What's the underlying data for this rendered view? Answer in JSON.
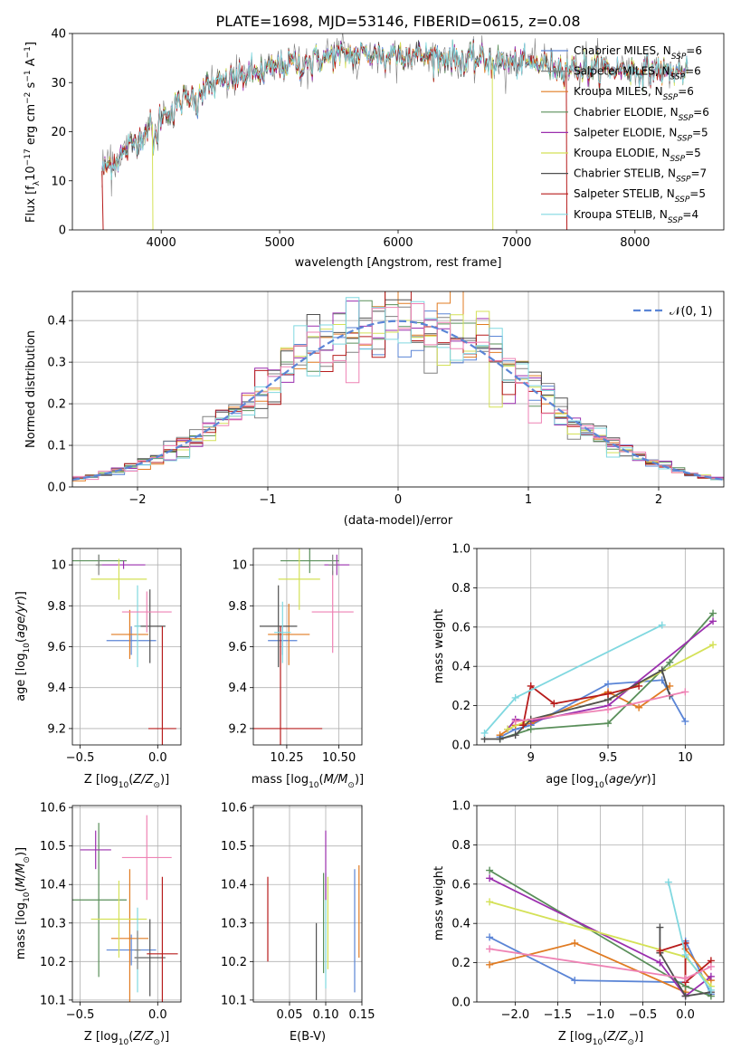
{
  "title": "PLATE=1698, MJD=53146, FIBERID=0615, z=0.08",
  "colors": {
    "Chabrier MILES": "#5b85d6",
    "Salpeter MILES": "#808080",
    "Kroupa MILES": "#e07b22",
    "Chabrier ELODIE": "#5a8f5a",
    "Salpeter ELODIE": "#9b2fae",
    "Kroupa ELODIE": "#d4e157",
    "Chabrier STELIB": "#505050",
    "Salpeter STELIB": "#b71c1c",
    "Kroupa STELIB": "#80d8e0",
    "pink": "#ee82b4",
    "normal": "#5b85d6"
  },
  "legend_top": [
    {
      "name": "Chabrier MILES, N",
      "n": "6",
      "color": "#5b85d6"
    },
    {
      "name": "Salpeter MILES, N",
      "n": "6",
      "color": "#808080"
    },
    {
      "name": "Kroupa MILES, N",
      "n": "6",
      "color": "#e07b22"
    },
    {
      "name": "Chabrier ELODIE, N",
      "n": "6",
      "color": "#5a8f5a"
    },
    {
      "name": "Salpeter ELODIE, N",
      "n": "5",
      "color": "#9b2fae"
    },
    {
      "name": "Kroupa ELODIE, N",
      "n": "5",
      "color": "#d4e157"
    },
    {
      "name": "Chabrier STELIB, N",
      "n": "7",
      "color": "#505050"
    },
    {
      "name": "Salpeter STELIB, N",
      "n": "5",
      "color": "#b71c1c"
    },
    {
      "name": "Kroupa STELIB, N",
      "n": "4",
      "color": "#80d8e0"
    }
  ],
  "legend_sub": "SSP",
  "legend_hist": "𝒩(0, 1)",
  "chart_data": [
    {
      "id": "spectrum",
      "type": "line",
      "xlabel": "wavelength [Angstrom, rest frame]",
      "ylabel": "Flux [f",
      "xlim": [
        3250,
        8750
      ],
      "ylim": [
        0,
        40
      ],
      "xticks": [
        4000,
        5000,
        6000,
        7000,
        8000
      ],
      "yticks": [
        0,
        10,
        20,
        30,
        40
      ],
      "continuum": {
        "x": [
          3500,
          3700,
          3900,
          4100,
          4300,
          4500,
          4800,
          5100,
          5500,
          6000,
          6500,
          7000,
          7500,
          8000,
          8500
        ],
        "y": [
          12,
          16,
          21,
          25,
          28,
          30,
          32,
          34,
          35.5,
          36,
          35,
          34,
          33,
          32.5,
          32
        ]
      },
      "data_range": [
        3500,
        8450
      ]
    },
    {
      "id": "residuals",
      "type": "area",
      "xlabel": "(data-model)/error",
      "ylabel": "Normed distribution",
      "xlim": [
        -2.5,
        2.5
      ],
      "ylim": [
        0,
        0.47
      ],
      "xticks": [
        -2,
        -1,
        0,
        1,
        2
      ],
      "xtick_labels": [
        "−2",
        "−1",
        "0",
        "1",
        "2"
      ],
      "yticks": [
        0.0,
        0.1,
        0.2,
        0.3,
        0.4
      ],
      "ytick_labels": [
        "0.0",
        "0.1",
        "0.2",
        "0.3",
        "0.4"
      ],
      "bin_width": 0.1,
      "normal_mean": 0,
      "normal_sigma": 1
    },
    {
      "id": "age_vs_Z",
      "type": "scatter",
      "xlabel": "Z [log",
      "ylabel": "age  [log",
      "xlim": [
        -0.55,
        0.15
      ],
      "ylim": [
        9.12,
        10.08
      ],
      "xticks": [
        -0.5,
        0.0
      ],
      "xtick_labels": [
        "−0.5",
        "0.0"
      ],
      "yticks": [
        9.2,
        9.4,
        9.6,
        9.8,
        10.0
      ],
      "points": [
        {
          "s": "Chabrier MILES",
          "x": -0.17,
          "y": 9.63,
          "xe": 0.16,
          "ye": 0.07
        },
        {
          "s": "Kroupa MILES",
          "x": -0.18,
          "y": 9.66,
          "xe": 0.12,
          "ye": 0.12
        },
        {
          "s": "Chabrier ELODIE",
          "x": -0.38,
          "y": 10.02,
          "xe": 0.18,
          "ye": 0.03
        },
        {
          "s": "Salpeter ELODIE",
          "x": -0.22,
          "y": 10.0,
          "xe": 0.14,
          "ye": 0.02
        },
        {
          "s": "Kroupa ELODIE",
          "x": -0.25,
          "y": 9.93,
          "xe": 0.18,
          "ye": 0.1
        },
        {
          "s": "Chabrier STELIB",
          "x": -0.05,
          "y": 9.7,
          "xe": 0.1,
          "ye": 0.18
        },
        {
          "s": "Salpeter STELIB",
          "x": 0.03,
          "y": 9.2,
          "xe": 0.09,
          "ye": 0.5
        },
        {
          "s": "Kroupa STELIB",
          "x": -0.13,
          "y": 9.7,
          "xe": 0.02,
          "ye": 0.2
        },
        {
          "s": "pink",
          "x": -0.07,
          "y": 9.77,
          "xe": 0.16,
          "ye": 0.1
        },
        {
          "s": "Salpeter MILES",
          "x": -0.38,
          "y": 10.0,
          "xe": 0.02,
          "ye": 0.05
        }
      ]
    },
    {
      "id": "age_vs_mass",
      "type": "scatter",
      "xlabel": "mass [log",
      "ylabel": "",
      "xlim": [
        10.09,
        10.61
      ],
      "ylim": [
        9.12,
        10.08
      ],
      "xticks": [
        10.25,
        10.5
      ],
      "xtick_labels": [
        "10.25",
        "10.50"
      ],
      "yticks": [
        9.2,
        9.4,
        9.6,
        9.8,
        10.0
      ],
      "points": [
        {
          "s": "Chabrier MILES",
          "x": 10.23,
          "y": 9.63,
          "xe": 0.07,
          "ye": 0.07
        },
        {
          "s": "Kroupa MILES",
          "x": 10.26,
          "y": 9.66,
          "xe": 0.1,
          "ye": 0.15
        },
        {
          "s": "Chabrier ELODIE",
          "x": 10.36,
          "y": 10.02,
          "xe": 0.14,
          "ye": 0.06
        },
        {
          "s": "Salpeter ELODIE",
          "x": 10.49,
          "y": 10.0,
          "xe": 0.06,
          "ye": 0.05
        },
        {
          "s": "Kroupa ELODIE",
          "x": 10.31,
          "y": 9.93,
          "xe": 0.1,
          "ye": 0.15
        },
        {
          "s": "Chabrier STELIB",
          "x": 10.21,
          "y": 9.7,
          "xe": 0.09,
          "ye": 0.2
        },
        {
          "s": "Salpeter STELIB",
          "x": 10.22,
          "y": 9.2,
          "xe": 0.2,
          "ye": 0.5
        },
        {
          "s": "Kroupa STELIB",
          "x": 10.23,
          "y": 9.67,
          "xe": 0.04,
          "ye": 0.15
        },
        {
          "s": "pink",
          "x": 10.47,
          "y": 9.77,
          "xe": 0.1,
          "ye": 0.2
        },
        {
          "s": "Salpeter MILES",
          "x": 10.47,
          "y": 10.0,
          "xe": 0.02,
          "ye": 0.05
        }
      ]
    },
    {
      "id": "weight_vs_age",
      "type": "line",
      "xlabel": "age  [log",
      "ylabel": "mass weight",
      "xlim": [
        8.65,
        10.25
      ],
      "ylim": [
        0,
        1
      ],
      "xticks": [
        9.0,
        9.5,
        10.0
      ],
      "yticks": [
        0.0,
        0.2,
        0.4,
        0.6,
        0.8,
        1.0
      ],
      "series": [
        {
          "s": "Chabrier MILES",
          "x": [
            8.8,
            8.9,
            9.0,
            9.5,
            9.85,
            10.0
          ],
          "y": [
            0.04,
            0.08,
            0.1,
            0.31,
            0.33,
            0.12
          ]
        },
        {
          "s": "Kroupa MILES",
          "x": [
            8.8,
            8.9,
            9.0,
            9.5,
            9.7,
            9.9
          ],
          "y": [
            0.05,
            0.1,
            0.11,
            0.27,
            0.19,
            0.3
          ]
        },
        {
          "s": "Chabrier ELODIE",
          "x": [
            8.8,
            9.0,
            9.5,
            9.9,
            10.18
          ],
          "y": [
            0.03,
            0.08,
            0.11,
            0.42,
            0.67
          ]
        },
        {
          "s": "Salpeter ELODIE",
          "x": [
            8.85,
            8.9,
            9.0,
            9.5,
            10.18
          ],
          "y": [
            0.08,
            0.13,
            0.12,
            0.2,
            0.63
          ]
        },
        {
          "s": "Kroupa ELODIE",
          "x": [
            8.85,
            9.0,
            9.5,
            10.18
          ],
          "y": [
            0.08,
            0.13,
            0.23,
            0.51
          ]
        },
        {
          "s": "Chabrier STELIB",
          "x": [
            8.7,
            8.8,
            8.9,
            9.0,
            9.5,
            9.85,
            9.9
          ],
          "y": [
            0.03,
            0.03,
            0.05,
            0.13,
            0.23,
            0.38,
            0.25
          ]
        },
        {
          "s": "Salpeter STELIB",
          "x": [
            8.95,
            9.0,
            9.15,
            9.5,
            9.7
          ],
          "y": [
            0.1,
            0.3,
            0.21,
            0.26,
            0.3
          ]
        },
        {
          "s": "Kroupa STELIB",
          "x": [
            8.7,
            8.9,
            9.85
          ],
          "y": [
            0.06,
            0.24,
            0.61
          ]
        },
        {
          "s": "pink",
          "x": [
            8.9,
            9.5,
            10.0
          ],
          "y": [
            0.12,
            0.18,
            0.27
          ]
        }
      ]
    },
    {
      "id": "mass_vs_Z",
      "type": "scatter",
      "xlabel": "Z [log",
      "ylabel": "mass [log",
      "xlim": [
        -0.55,
        0.15
      ],
      "ylim": [
        10.095,
        10.605
      ],
      "xticks": [
        -0.5,
        0.0
      ],
      "xtick_labels": [
        "−0.5",
        "0.0"
      ],
      "yticks": [
        10.1,
        10.2,
        10.3,
        10.4,
        10.5,
        10.6
      ],
      "points": [
        {
          "s": "Chabrier MILES",
          "x": -0.17,
          "y": 10.23,
          "xe": 0.16,
          "ye": 0.04
        },
        {
          "s": "Kroupa MILES",
          "x": -0.18,
          "y": 10.26,
          "xe": 0.12,
          "ye": 0.18
        },
        {
          "s": "Chabrier ELODIE",
          "x": -0.38,
          "y": 10.36,
          "xe": 0.18,
          "ye": 0.2
        },
        {
          "s": "Salpeter ELODIE",
          "x": -0.4,
          "y": 10.49,
          "xe": 0.1,
          "ye": 0.05
        },
        {
          "s": "Kroupa ELODIE",
          "x": -0.25,
          "y": 10.31,
          "xe": 0.18,
          "ye": 0.1
        },
        {
          "s": "Chabrier STELIB",
          "x": -0.05,
          "y": 10.21,
          "xe": 0.1,
          "ye": 0.1
        },
        {
          "s": "Salpeter STELIB",
          "x": 0.03,
          "y": 10.22,
          "xe": 0.1,
          "ye": 0.2
        },
        {
          "s": "Kroupa STELIB",
          "x": -0.13,
          "y": 10.23,
          "xe": 0.02,
          "ye": 0.11
        },
        {
          "s": "pink",
          "x": -0.07,
          "y": 10.47,
          "xe": 0.16,
          "ye": 0.11
        },
        {
          "s": "Salpeter MILES",
          "x": -0.13,
          "y": 10.23,
          "xe": 0.02,
          "ye": 0.05
        }
      ]
    },
    {
      "id": "mass_vs_EBV",
      "type": "scatter",
      "xlabel": "E(B-V)",
      "ylabel": "",
      "xlim": [
        0.0,
        0.15
      ],
      "ylim": [
        10.095,
        10.605
      ],
      "xticks": [
        0.05,
        0.1,
        0.15
      ],
      "xtick_labels": [
        "0.05",
        "0.10",
        "0.15"
      ],
      "yticks": [
        10.1,
        10.2,
        10.3,
        10.4,
        10.5,
        10.6
      ],
      "points": [
        {
          "s": "Salpeter STELIB",
          "x": 0.02,
          "y": 10.31,
          "ye": 0.11
        },
        {
          "s": "Chabrier STELIB",
          "x": 0.087,
          "y": 10.2,
          "ye": 0.1
        },
        {
          "s": "Chabrier ELODIE",
          "x": 0.097,
          "y": 10.3,
          "ye": 0.13
        },
        {
          "s": "Kroupa STELIB",
          "x": 0.1,
          "y": 10.28,
          "ye": 0.15
        },
        {
          "s": "Salpeter ELODIE",
          "x": 0.1,
          "y": 10.45,
          "ye": 0.09
        },
        {
          "s": "Kroupa ELODIE",
          "x": 0.103,
          "y": 10.3,
          "ye": 0.12
        },
        {
          "s": "Chabrier MILES",
          "x": 0.14,
          "y": 10.28,
          "ye": 0.16
        },
        {
          "s": "Kroupa MILES",
          "x": 0.146,
          "y": 10.33,
          "ye": 0.12
        }
      ]
    },
    {
      "id": "weight_vs_Z",
      "type": "line",
      "xlabel": "Z [log",
      "ylabel": "mass weight",
      "xlim": [
        -2.45,
        0.45
      ],
      "ylim": [
        0,
        1
      ],
      "xticks": [
        -2.0,
        -1.5,
        -1.0,
        -0.5,
        0.0
      ],
      "xtick_labels": [
        "−2.0",
        "−1.5",
        "−1.0",
        "−0.5",
        "0.0"
      ],
      "yticks": [
        0.0,
        0.2,
        0.4,
        0.6,
        0.8,
        1.0
      ],
      "series": [
        {
          "s": "Chabrier MILES",
          "x": [
            -2.3,
            -1.3,
            0.0,
            0.0,
            0.3
          ],
          "y": [
            0.33,
            0.11,
            0.1,
            0.31,
            0.04
          ]
        },
        {
          "s": "Kroupa MILES",
          "x": [
            -2.3,
            -1.3,
            0.0,
            0.0,
            0.3
          ],
          "y": [
            0.19,
            0.3,
            0.05,
            0.27,
            0.11
          ]
        },
        {
          "s": "Chabrier ELODIE",
          "x": [
            -2.3,
            0.0,
            0.3
          ],
          "y": [
            0.67,
            0.08,
            0.03
          ]
        },
        {
          "s": "Salpeter ELODIE",
          "x": [
            -2.3,
            -0.3,
            0.0,
            0.3
          ],
          "y": [
            0.63,
            0.2,
            0.03,
            0.13
          ]
        },
        {
          "s": "Kroupa ELODIE",
          "x": [
            -2.3,
            0.0,
            0.3
          ],
          "y": [
            0.51,
            0.23,
            0.08
          ]
        },
        {
          "s": "Chabrier STELIB",
          "x": [
            -0.3,
            -0.3,
            0.0,
            0.3
          ],
          "y": [
            0.38,
            0.25,
            0.03,
            0.05
          ]
        },
        {
          "s": "Salpeter STELIB",
          "x": [
            -0.3,
            0.0,
            0.0,
            0.3
          ],
          "y": [
            0.26,
            0.3,
            0.1,
            0.21
          ]
        },
        {
          "s": "Kroupa STELIB",
          "x": [
            -0.2,
            0.0,
            0.3
          ],
          "y": [
            0.61,
            0.24,
            0.06
          ]
        },
        {
          "s": "pink",
          "x": [
            -2.3,
            0.0,
            0.3
          ],
          "y": [
            0.27,
            0.12,
            0.18
          ]
        }
      ]
    }
  ]
}
